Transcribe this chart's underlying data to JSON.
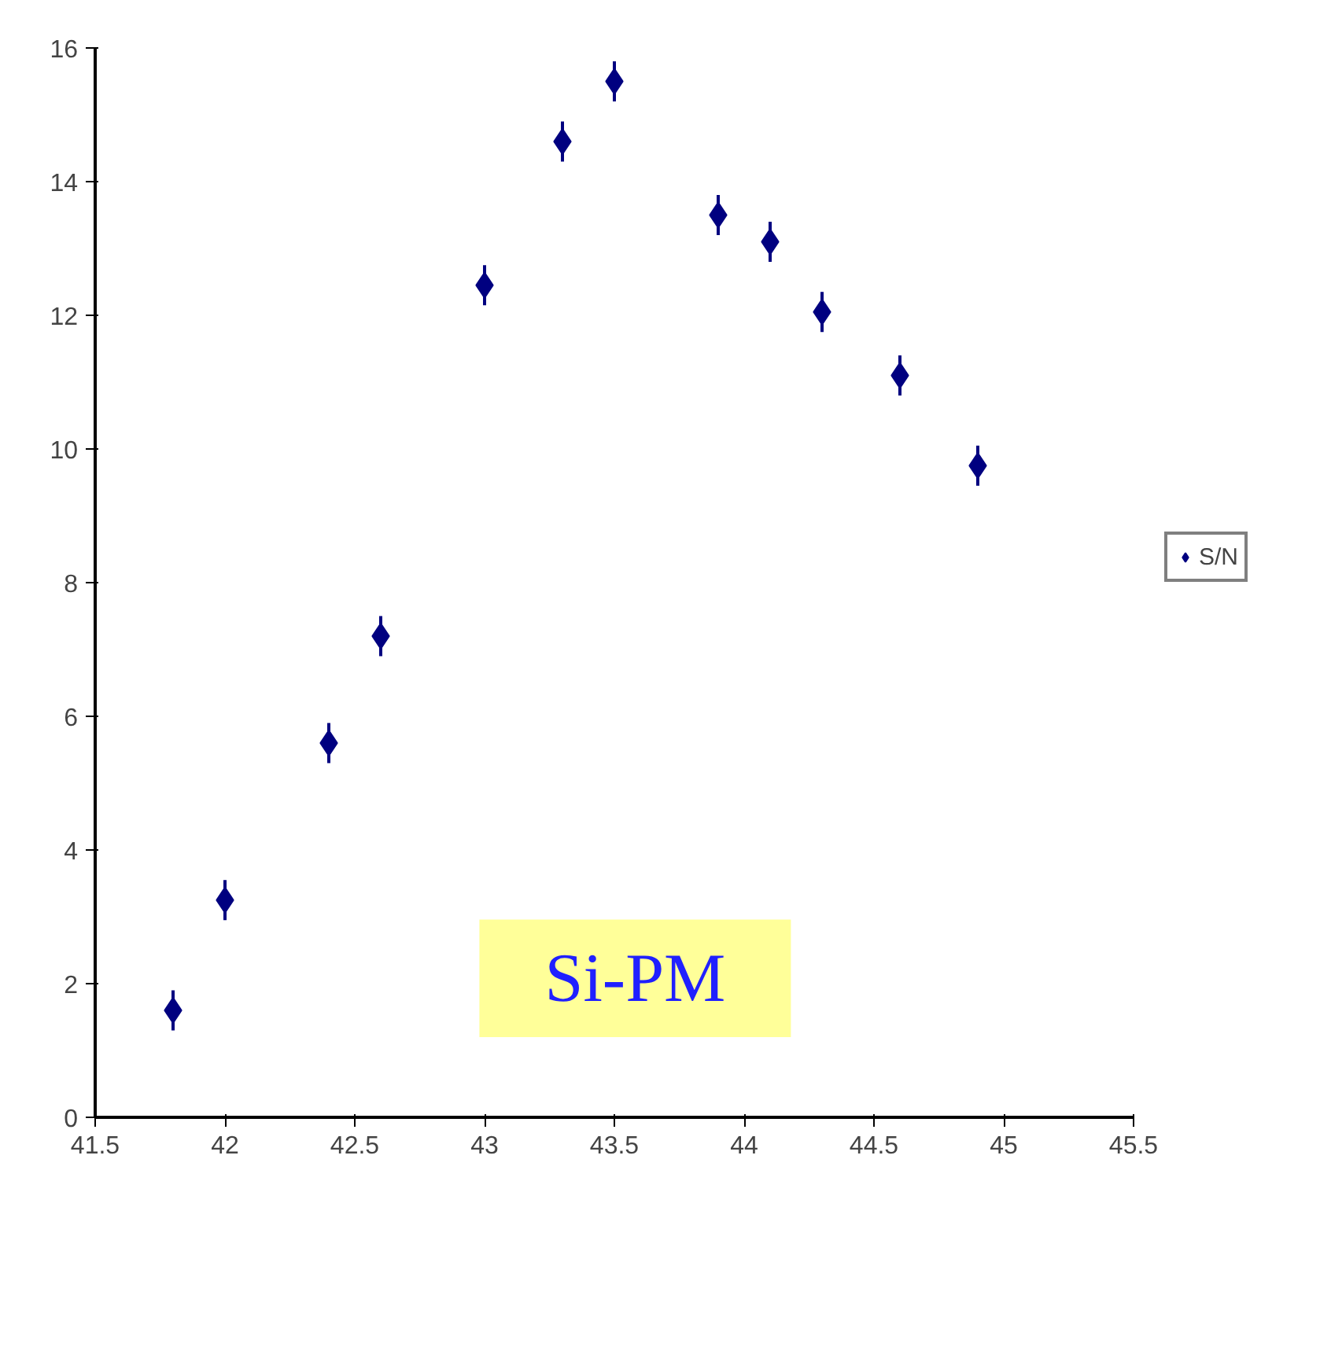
{
  "chart_data": {
    "type": "scatter",
    "x": [
      41.8,
      42.0,
      42.4,
      42.6,
      43.0,
      43.3,
      43.5,
      43.9,
      44.1,
      44.3,
      44.6,
      44.9
    ],
    "series": [
      {
        "name": "S/N",
        "color": "#000080",
        "values": [
          1.6,
          3.25,
          5.6,
          7.2,
          12.45,
          14.6,
          15.5,
          13.5,
          13.1,
          12.05,
          11.1,
          9.75
        ],
        "errors": [
          0.3,
          0.3,
          0.3,
          0.3,
          0.3,
          0.3,
          0.3,
          0.3,
          0.3,
          0.3,
          0.3,
          0.3
        ]
      }
    ],
    "xlim": [
      41.5,
      45.5
    ],
    "ylim": [
      0,
      16
    ],
    "xticks": [
      41.5,
      42,
      42.5,
      43,
      43.5,
      44,
      44.5,
      45,
      45.5
    ],
    "yticks": [
      0,
      2,
      4,
      6,
      8,
      10,
      12,
      14,
      16
    ],
    "annotations": [
      "Si-PM"
    ],
    "marker": "diamond",
    "grid": false,
    "legend": "right"
  }
}
